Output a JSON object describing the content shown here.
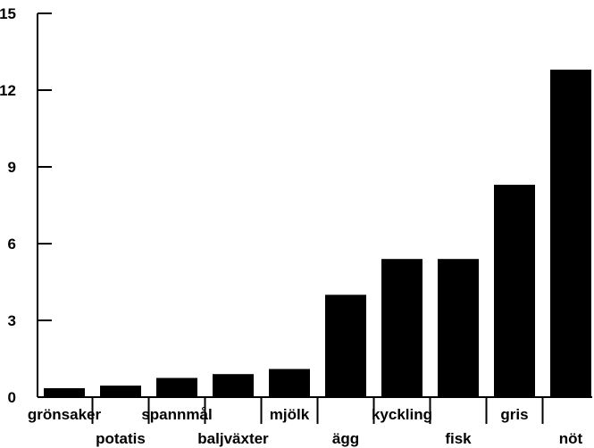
{
  "chart_data": {
    "type": "bar",
    "title": "",
    "xlabel": "",
    "ylabel": "",
    "categories": [
      "grönsaker",
      "potatis",
      "spannmål",
      "baljväxter",
      "mjölk",
      "ägg",
      "kyckling",
      "fisk",
      "gris",
      "nöt"
    ],
    "values": [
      0.35,
      0.45,
      0.75,
      0.9,
      1.1,
      4.0,
      5.4,
      5.4,
      8.3,
      12.8
    ],
    "ylim": [
      0,
      15
    ],
    "yticks": [
      "0",
      "3",
      "6",
      "9",
      "12",
      "15"
    ],
    "grid": false,
    "legend": "none",
    "bar_color": "#000000"
  }
}
